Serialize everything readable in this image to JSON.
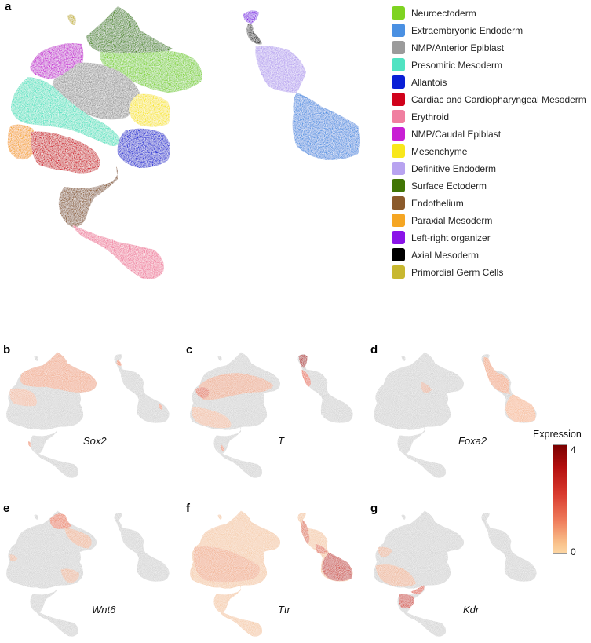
{
  "panels": {
    "a": "a",
    "b": "b",
    "c": "c",
    "d": "d",
    "e": "e",
    "f": "f",
    "g": "g"
  },
  "legend": [
    {
      "label": "Neuroectoderm",
      "color": "#7ed321"
    },
    {
      "label": "Extraembryonic Endoderm",
      "color": "#4a90e2"
    },
    {
      "label": "NMP/Anterior Epiblast",
      "color": "#9b9b9b"
    },
    {
      "label": "Presomitic Mesoderm",
      "color": "#50e3c2"
    },
    {
      "label": "Allantois",
      "color": "#0a1fd6"
    },
    {
      "label": "Cardiac and Cardiopharyngeal Mesoderm",
      "color": "#d0021b"
    },
    {
      "label": "Erythroid",
      "color": "#f07fa0"
    },
    {
      "label": "NMP/Caudal Epiblast",
      "color": "#c81fd4"
    },
    {
      "label": "Mesenchyme",
      "color": "#f8e71c"
    },
    {
      "label": "Definitive Endoderm",
      "color": "#b8a3f0"
    },
    {
      "label": "Surface Ectoderm",
      "color": "#417505"
    },
    {
      "label": "Endothelium",
      "color": "#8b5a2b"
    },
    {
      "label": "Paraxial Mesoderm",
      "color": "#f5a623"
    },
    {
      "label": "Left-right organizer",
      "color": "#8a14e8"
    },
    {
      "label": "Axial Mesoderm",
      "color": "#000000"
    },
    {
      "label": "Primordial Germ Cells",
      "color": "#c8b830"
    }
  ],
  "genes": [
    {
      "panel": "b",
      "label": "Sox2"
    },
    {
      "panel": "c",
      "label": "T"
    },
    {
      "panel": "d",
      "label": "Foxa2"
    },
    {
      "panel": "e",
      "label": "Wnt6"
    },
    {
      "panel": "f",
      "label": "Ttr"
    },
    {
      "panel": "g",
      "label": "Kdr"
    }
  ],
  "colorbar": {
    "title": "Expression",
    "max_label": "4",
    "min_label": "0",
    "low_color": "#fcd7a4",
    "high_color": "#7a0000",
    "zero_color": "#d0d0d0"
  }
}
